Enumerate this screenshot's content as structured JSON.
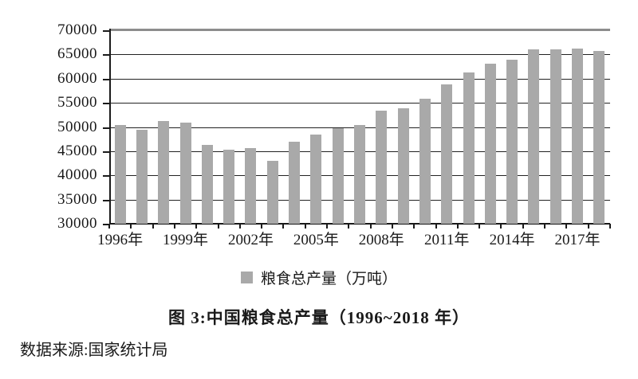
{
  "figure": {
    "caption": "图 3:中国粮食总产量（1996~2018 年）",
    "source": "数据来源:国家统计局"
  },
  "colors": {
    "bar": "#a9a9a9",
    "gridline": "#222222",
    "plot_top_border": "#8d8d8d",
    "axis": "#1a1a1a"
  },
  "chart_data": {
    "type": "bar",
    "title": "图 3:中国粮食总产量（1996~2018 年）",
    "xlabel": "",
    "ylabel": "",
    "categories": [
      1996,
      1997,
      1998,
      1999,
      2000,
      2001,
      2002,
      2003,
      2004,
      2005,
      2006,
      2007,
      2008,
      2009,
      2010,
      2011,
      2012,
      2013,
      2014,
      2015,
      2016,
      2017,
      2018
    ],
    "series": [
      {
        "name": "粮食总产量（万吨）",
        "color": "#a9a9a9",
        "values": [
          50454,
          49417,
          51230,
          50839,
          46218,
          45264,
          45706,
          43070,
          46947,
          48402,
          49804,
          50414,
          53434,
          53941,
          55911,
          58849,
          61223,
          63048,
          63965,
          66060,
          66044,
          66161,
          65789
        ]
      }
    ],
    "ylim": [
      30000,
      70000
    ],
    "y_ticks": [
      70000,
      65000,
      60000,
      55000,
      50000,
      45000,
      40000,
      35000,
      30000
    ],
    "x_tick_labels": [
      "1996年",
      "1999年",
      "2002年",
      "2005年",
      "2008年",
      "2011年",
      "2014年",
      "2017年"
    ],
    "x_tick_interval": 3,
    "grid": true,
    "legend_position": "bottom"
  }
}
